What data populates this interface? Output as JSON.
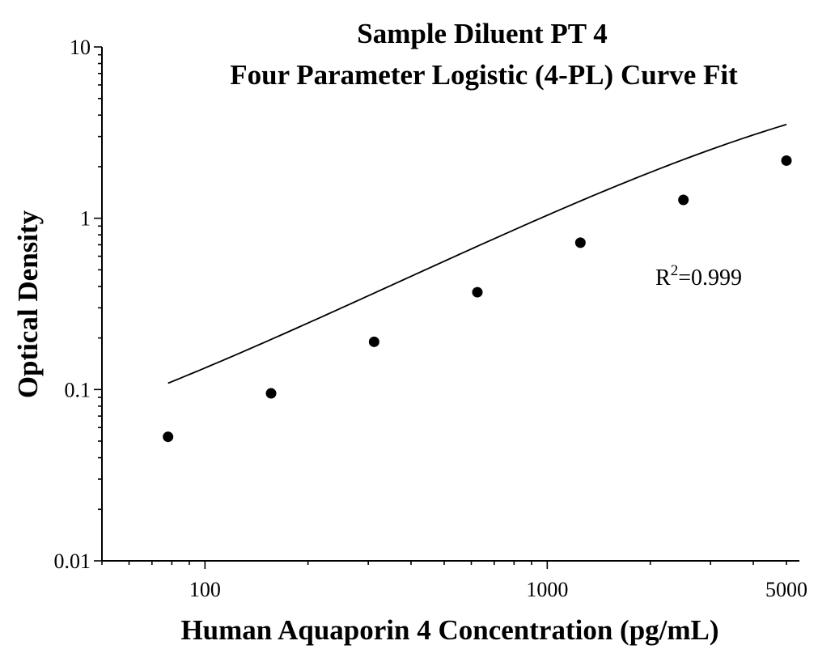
{
  "chart_data": {
    "type": "scatter",
    "title_line1": "Sample Diluent PT 4",
    "title_line2": "Four Parameter Logistic (4-PL) Curve Fit",
    "xlabel": "Human Aquaporin 4 Concentration (pg/mL)",
    "ylabel": "Optical Density",
    "x_scale": "log",
    "y_scale": "log",
    "xlim": [
      50,
      5000
    ],
    "ylim": [
      0.01,
      10
    ],
    "x_tick_labels": [
      "100",
      "1000",
      "5000"
    ],
    "x_tick_values": [
      100,
      1000,
      5000
    ],
    "y_tick_labels": [
      "0.01",
      "0.1",
      "1",
      "10"
    ],
    "y_tick_values": [
      0.01,
      0.1,
      1,
      10
    ],
    "grid": false,
    "series": [
      {
        "points": [
          {
            "x": 78,
            "y": 0.053
          },
          {
            "x": 156,
            "y": 0.095
          },
          {
            "x": 312,
            "y": 0.19
          },
          {
            "x": 625,
            "y": 0.37
          },
          {
            "x": 1250,
            "y": 0.72
          },
          {
            "x": 2500,
            "y": 1.28
          },
          {
            "x": 5000,
            "y": 2.17
          }
        ]
      }
    ],
    "fit": {
      "model": "4PL",
      "a": 0.02,
      "b": 1.0,
      "c": 7800,
      "d": 9.0,
      "x_range": [
        78,
        5000
      ]
    },
    "annotation": {
      "r_base": "R",
      "r_sup": "2",
      "r_value": "=0.999"
    }
  }
}
